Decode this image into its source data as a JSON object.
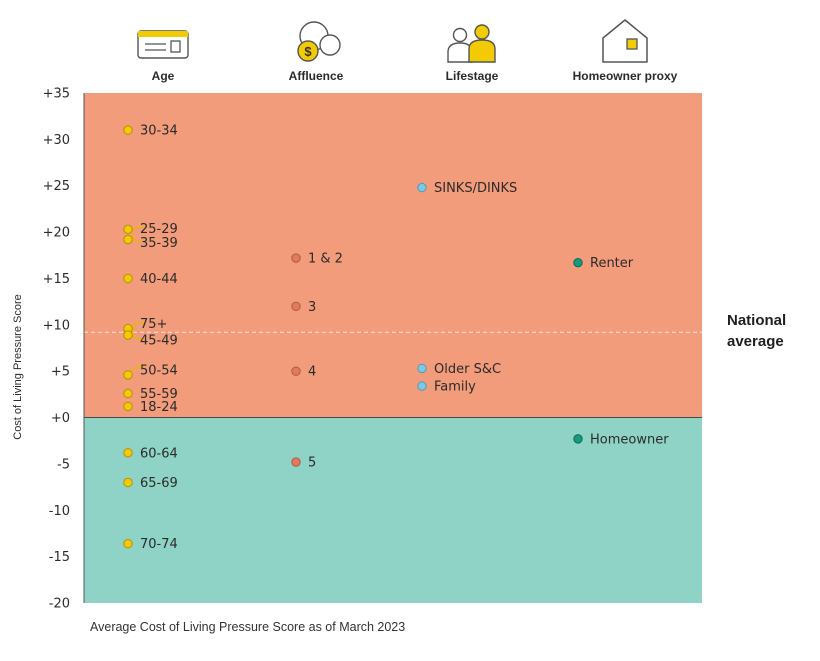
{
  "chart_data": {
    "type": "scatter",
    "title": "",
    "ylabel": "Cost of Living Pressure Score",
    "caption": "Average Cost of Living Pressure Score as of March 2023",
    "ylim": [
      -20,
      35
    ],
    "yticks": [
      "+35",
      "+30",
      "+25",
      "+20",
      "+15",
      "+10",
      "+5",
      "+0",
      "-5",
      "-10",
      "-15",
      "-20"
    ],
    "ytick_values": [
      35,
      30,
      25,
      20,
      15,
      10,
      5,
      0,
      -5,
      -10,
      -15,
      -20
    ],
    "reference_line": {
      "value": 9.2,
      "label_lines": [
        "National",
        "average"
      ]
    },
    "regions": [
      {
        "from": 0,
        "to": 35,
        "color": "#F29C7C"
      },
      {
        "from": -20,
        "to": 0,
        "color": "#8FD3C6"
      }
    ],
    "categories": [
      {
        "name": "Age",
        "icon": "id-card-icon",
        "color": "#F2CB05",
        "points": [
          {
            "label": "30-34",
            "value": 31
          },
          {
            "label": "25-29",
            "value": 20.3
          },
          {
            "label": "35-39",
            "value": 19.2
          },
          {
            "label": "40-44",
            "value": 15
          },
          {
            "label": "75+",
            "value": 9.6
          },
          {
            "label": "45-49",
            "value": 8.9
          },
          {
            "label": "50-54",
            "value": 4.6
          },
          {
            "label": "55-59",
            "value": 2.6
          },
          {
            "label": "18-24",
            "value": 1.2
          },
          {
            "label": "60-64",
            "value": -3.8
          },
          {
            "label": "65-69",
            "value": -7
          },
          {
            "label": "70-74",
            "value": -13.6
          }
        ]
      },
      {
        "name": "Affluence",
        "icon": "coins-icon",
        "color": "#E07C5E",
        "points": [
          {
            "label": "1 & 2",
            "value": 17.2
          },
          {
            "label": "3",
            "value": 12
          },
          {
            "label": "4",
            "value": 5
          },
          {
            "label": "5",
            "value": -4.8
          }
        ]
      },
      {
        "name": "Lifestage",
        "icon": "family-icon",
        "color": "#7EC8E3",
        "points": [
          {
            "label": "SINKS/DINKS",
            "value": 24.8
          },
          {
            "label": "Older S&C",
            "value": 5.3
          },
          {
            "label": "Family",
            "value": 3.4
          }
        ]
      },
      {
        "name": "Homeowner proxy",
        "icon": "house-icon",
        "color": "#159A7C",
        "points": [
          {
            "label": "Renter",
            "value": 16.7
          },
          {
            "label": "Homeowner",
            "value": -2.3
          }
        ]
      }
    ]
  }
}
